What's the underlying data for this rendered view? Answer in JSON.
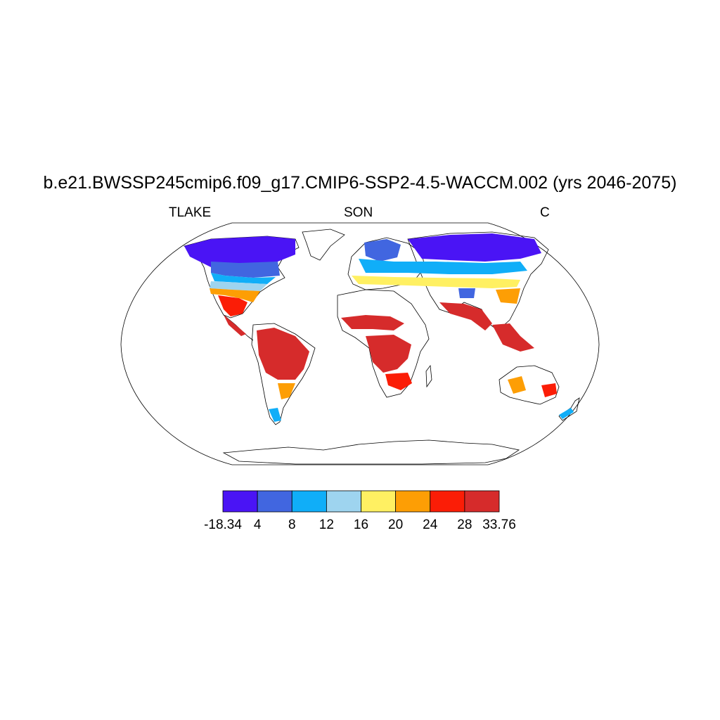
{
  "title": "b.e21.BWSSP245cmip6.f09_g17.CMIP6-SSP2-4.5-WACCM.002 (yrs 2046-2075)",
  "subtitle": {
    "left": "TLAKE",
    "center": "SON",
    "right": "C"
  },
  "colorbar": {
    "colors": [
      "#4a14f5",
      "#4166e0",
      "#10aef8",
      "#9ed4ef",
      "#fff062",
      "#fd9e05",
      "#fb1d06",
      "#d62b2b"
    ],
    "labels": [
      "-18.34",
      "4",
      "8",
      "12",
      "16",
      "20",
      "24",
      "28",
      "33.76"
    ]
  }
}
